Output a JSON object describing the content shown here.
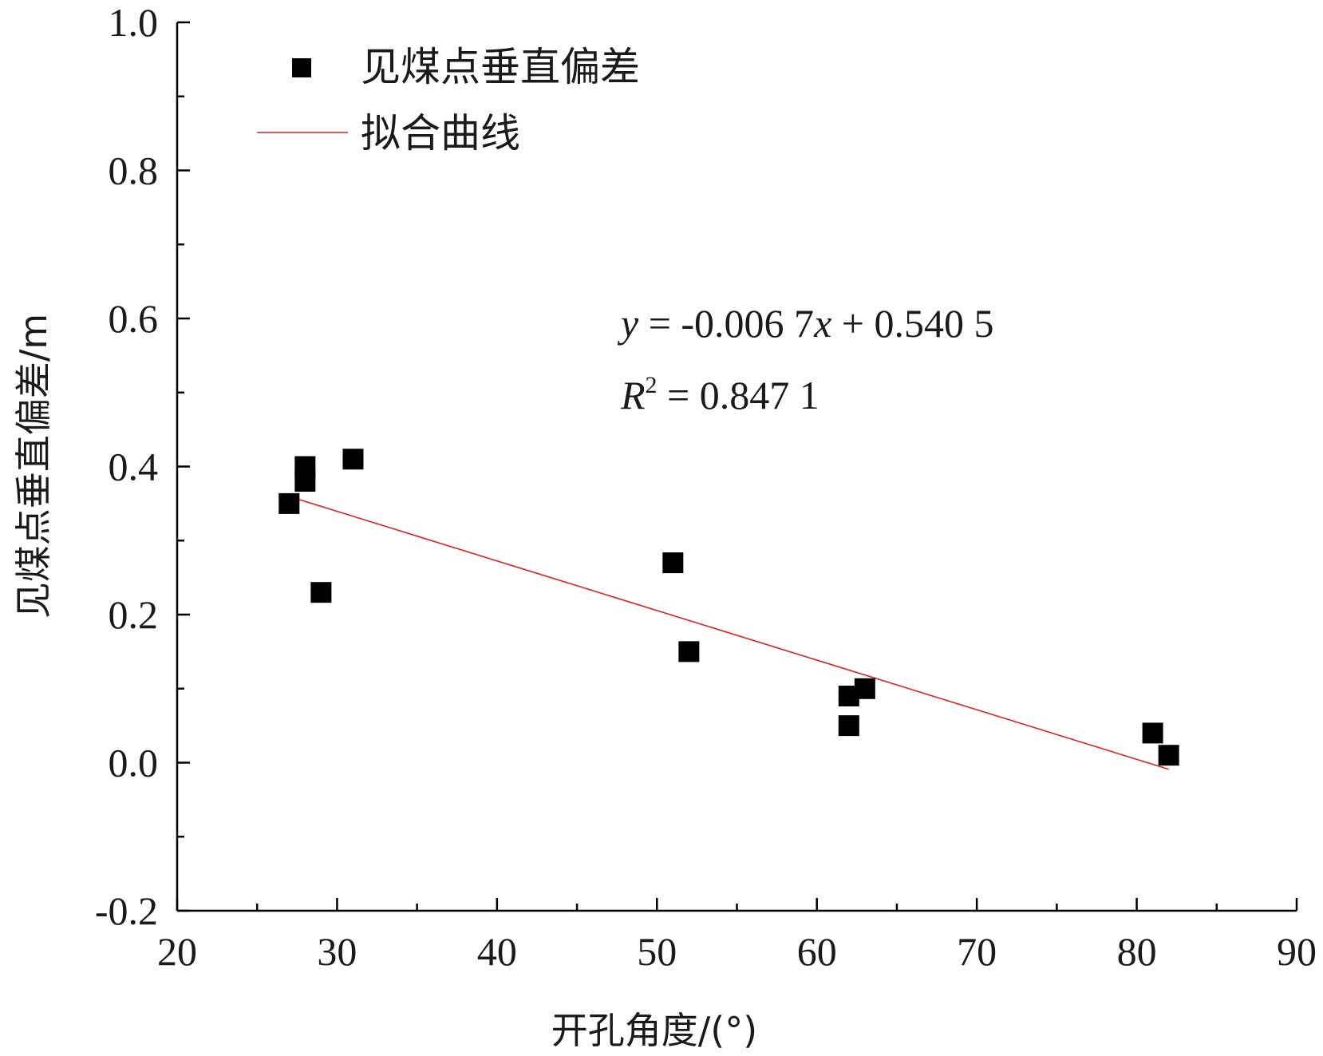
{
  "chart_data": {
    "type": "scatter",
    "xlabel": "开孔角度/(°)",
    "ylabel": "见煤点垂直偏差/m",
    "xlim": [
      20,
      90
    ],
    "ylim": [
      -0.2,
      1.0
    ],
    "x_ticks": [
      "20",
      "30",
      "40",
      "50",
      "60",
      "70",
      "80",
      "90"
    ],
    "y_ticks": [
      "-0.2",
      "0.0",
      "0.2",
      "0.4",
      "0.6",
      "0.8",
      "1.0"
    ],
    "x_tick_values": [
      20,
      30,
      40,
      50,
      60,
      70,
      80,
      90
    ],
    "y_tick_values": [
      -0.2,
      0.0,
      0.2,
      0.4,
      0.6,
      0.8,
      1.0
    ],
    "grid": false,
    "legend_position": "top-left",
    "series": [
      {
        "name": "见煤点垂直偏差",
        "kind": "scatter",
        "marker": "square",
        "color": "#000000",
        "points": [
          {
            "x": 27,
            "y": 0.35
          },
          {
            "x": 28,
            "y": 0.4
          },
          {
            "x": 28,
            "y": 0.38
          },
          {
            "x": 29,
            "y": 0.23
          },
          {
            "x": 31,
            "y": 0.41
          },
          {
            "x": 51,
            "y": 0.27
          },
          {
            "x": 52,
            "y": 0.15
          },
          {
            "x": 62,
            "y": 0.09
          },
          {
            "x": 62,
            "y": 0.05
          },
          {
            "x": 63,
            "y": 0.1
          },
          {
            "x": 81,
            "y": 0.04
          },
          {
            "x": 82,
            "y": 0.01
          }
        ]
      },
      {
        "name": "拟合曲线",
        "kind": "line",
        "color": "#e02020",
        "slope": -0.0067,
        "intercept": 0.5405,
        "x_range": [
          27,
          82
        ]
      }
    ],
    "annotations": {
      "equation": {
        "y_var": "y",
        "eq_mid": " = -0.006 7",
        "x_var": "x",
        "eq_tail": " + 0.540 5"
      },
      "r_squared": {
        "r_var": "R",
        "sup": "2",
        "eq_tail": " = 0.847 1"
      }
    }
  }
}
